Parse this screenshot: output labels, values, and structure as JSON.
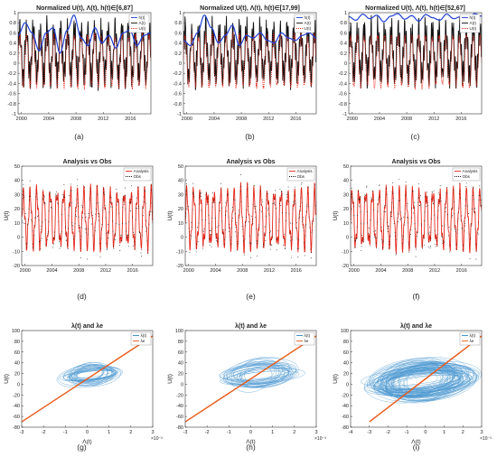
{
  "figure": {
    "colors": {
      "blue": "#1f3fd6",
      "red": "#e3281b",
      "black": "#111111",
      "scatter_blue": "#2e86c8",
      "orange": "#e8591a"
    }
  },
  "chart_data": [
    {
      "panel": "(a)",
      "type": "line",
      "title": "Normalized U(t), Λ(t), h(t)∈[6,87]",
      "xticks": [
        "2000",
        "2004",
        "2008",
        "2012",
        "2016"
      ],
      "xlim": [
        1999.5,
        2019
      ],
      "ylim": [
        -1,
        1
      ],
      "yticks": [
        "-1",
        "-0.8",
        "-0.6",
        "-0.4",
        "-0.2",
        "0",
        "0.2",
        "0.4",
        "0.6",
        "0.8",
        "1"
      ],
      "legend": {
        "position": "top-right",
        "entries": [
          "h(t)",
          "Λ(t)",
          "U(t)"
        ]
      },
      "series": [
        {
          "name": "h(t)",
          "values": [
            0.55,
            0.8,
            0.6,
            0.25,
            0.6,
            0.7,
            0.2,
            0.65,
            0.95,
            0.5,
            0.35,
            0.7,
            0.4,
            0.55,
            0.3,
            0.6,
            0.65,
            0.35,
            0.55,
            0.6
          ]
        },
        {
          "name": "Λ(t)",
          "amplitude": [
            -0.55,
            0.95
          ]
        },
        {
          "name": "U(t)",
          "amplitude": [
            -0.6,
            0.6
          ]
        }
      ]
    },
    {
      "panel": "(b)",
      "type": "line",
      "title": "Normalized U(t), Λ(t), h(t)∈[17,99]",
      "xticks": [
        "2000",
        "2004",
        "2008",
        "2012",
        "2016"
      ],
      "xlim": [
        1999.5,
        2019
      ],
      "ylim": [
        -1,
        1
      ],
      "yticks": [
        "-1",
        "-0.8",
        "-0.6",
        "-0.4",
        "-0.2",
        "0",
        "0.2",
        "0.4",
        "0.6",
        "0.8",
        "1"
      ],
      "legend": {
        "position": "top-right",
        "entries": [
          "h(t)",
          "Λ(t)",
          "U(t)"
        ]
      },
      "series": [
        {
          "name": "h(t)",
          "values": [
            0.45,
            0.35,
            0.6,
            0.95,
            0.7,
            0.4,
            0.55,
            0.75,
            0.35,
            0.55,
            0.5,
            0.6,
            0.45,
            0.4,
            0.6,
            0.5,
            0.45,
            0.55,
            0.6,
            0.5
          ]
        },
        {
          "name": "Λ(t)",
          "amplitude": [
            -0.55,
            0.95
          ]
        },
        {
          "name": "U(t)",
          "amplitude": [
            -0.65,
            0.6
          ]
        }
      ]
    },
    {
      "panel": "(c)",
      "type": "line",
      "title": "Normalized U(t), Λ(t), h(t)∈[52,67]",
      "xticks": [
        "2000",
        "2004",
        "2008",
        "2012",
        "2016"
      ],
      "xlim": [
        1999.5,
        2019
      ],
      "ylim": [
        -1,
        1
      ],
      "yticks": [
        "-1",
        "-0.8",
        "-0.6",
        "-0.4",
        "-0.2",
        "0",
        "0.2",
        "0.4",
        "0.6",
        "0.8",
        "1"
      ],
      "legend": {
        "position": "top-right",
        "entries": [
          "h(t)",
          "Λ(t)",
          "U(t)"
        ]
      },
      "series": [
        {
          "name": "h(t)",
          "values": [
            0.92,
            0.85,
            0.97,
            0.88,
            0.95,
            0.82,
            0.93,
            0.98,
            0.87,
            0.94,
            0.83,
            0.96,
            0.9,
            0.85,
            0.97,
            0.88,
            0.92,
            0.86,
            0.98,
            0.93
          ]
        },
        {
          "name": "Λ(t)",
          "amplitude": [
            -0.5,
            0.95
          ]
        },
        {
          "name": "U(t)",
          "amplitude": [
            -0.9,
            0.55
          ]
        }
      ]
    },
    {
      "panel": "(d)",
      "type": "line",
      "title": "Analysis vs Obs",
      "ylabel": "U(t)",
      "xticks": [
        "2000",
        "2004",
        "2008",
        "2012",
        "2016"
      ],
      "xlim": [
        1999.5,
        2019
      ],
      "ylim": [
        -20,
        50
      ],
      "yticks": [
        "-20",
        "-10",
        "0",
        "10",
        "20",
        "30",
        "40",
        "50"
      ],
      "legend": {
        "position": "top-right",
        "entries": [
          "Analysis",
          "Obs"
        ]
      },
      "series": [
        {
          "name": "Analysis",
          "amplitude": [
            -12,
            40
          ]
        },
        {
          "name": "Obs",
          "amplitude": [
            -14,
            44
          ]
        }
      ]
    },
    {
      "panel": "(e)",
      "type": "line",
      "title": "Analysis vs Obs",
      "ylabel": "U(t)",
      "xticks": [
        "2000",
        "2004",
        "2008",
        "2012",
        "2016"
      ],
      "xlim": [
        1999.5,
        2019
      ],
      "ylim": [
        -20,
        50
      ],
      "yticks": [
        "-20",
        "-10",
        "0",
        "10",
        "20",
        "30",
        "40",
        "50"
      ],
      "legend": {
        "position": "top-right",
        "entries": [
          "Analysis",
          "Obs"
        ]
      },
      "series": [
        {
          "name": "Analysis",
          "amplitude": [
            -12,
            40
          ]
        },
        {
          "name": "Obs",
          "amplitude": [
            -14,
            44
          ]
        }
      ]
    },
    {
      "panel": "(f)",
      "type": "line",
      "title": "Analysis vs Obs",
      "ylabel": "U(t)",
      "xticks": [
        "2000",
        "2004",
        "2008",
        "2012",
        "2016"
      ],
      "xlim": [
        1999.5,
        2019
      ],
      "ylim": [
        -20,
        50
      ],
      "yticks": [
        "-20",
        "-10",
        "0",
        "10",
        "20",
        "30",
        "40",
        "50"
      ],
      "legend": {
        "position": "top-right",
        "entries": [
          "Analysis",
          "Obs"
        ]
      },
      "series": [
        {
          "name": "Analysis",
          "amplitude": [
            -12,
            40
          ]
        },
        {
          "name": "Obs",
          "amplitude": [
            -14,
            44
          ]
        }
      ]
    },
    {
      "panel": "(g)",
      "type": "scatter",
      "title": "λ(t) and λe",
      "xlabel": "Λ(t)",
      "ylabel": "U(t)",
      "xexp": "×10⁻³",
      "xlim": [
        -3,
        3
      ],
      "xticks": [
        "-3",
        "-2",
        "-1",
        "0",
        "1",
        "2",
        "3"
      ],
      "ylim": [
        -80,
        100
      ],
      "yticks": [
        "-80",
        "-60",
        "-40",
        "-20",
        "0",
        "20",
        "40",
        "60",
        "80",
        "100"
      ],
      "legend": {
        "position": "top-right",
        "entries": [
          "λ(t)",
          "λe"
        ]
      },
      "series": [
        {
          "name": "λe",
          "x": [
            -3,
            3
          ],
          "y": [
            -70,
            90
          ]
        },
        {
          "name": "λ(t)",
          "xrange": [
            -1.2,
            1.6
          ],
          "yrange": [
            -5,
            40
          ]
        }
      ]
    },
    {
      "panel": "(h)",
      "type": "scatter",
      "title": "λ(t) and λe",
      "xlabel": "Λ(t)",
      "ylabel": "U(t)",
      "xexp": "×10⁻³",
      "xlim": [
        -3,
        3
      ],
      "xticks": [
        "-3",
        "-2",
        "-1",
        "0",
        "1",
        "2",
        "3"
      ],
      "ylim": [
        -80,
        100
      ],
      "yticks": [
        "-80",
        "-60",
        "-40",
        "-20",
        "0",
        "20",
        "40",
        "60",
        "80",
        "100"
      ],
      "legend": {
        "position": "top-right",
        "entries": [
          "λ(t)",
          "λe"
        ]
      },
      "series": [
        {
          "name": "λe",
          "x": [
            -3,
            3
          ],
          "y": [
            -70,
            90
          ]
        },
        {
          "name": "λ(t)",
          "xrange": [
            -1.5,
            2.2
          ],
          "yrange": [
            -10,
            45
          ]
        }
      ]
    },
    {
      "panel": "(i)",
      "type": "scatter",
      "title": "λ(t) and λe",
      "xlabel": "Λ(t)",
      "ylabel": "U(t)",
      "xexp": "×10⁻³",
      "xlim": [
        -4,
        3
      ],
      "xticks": [
        "-4",
        "-3",
        "-2",
        "-1",
        "0",
        "1",
        "2",
        "3"
      ],
      "ylim": [
        -80,
        100
      ],
      "yticks": [
        "-80",
        "-60",
        "-40",
        "-20",
        "0",
        "20",
        "40",
        "60",
        "80",
        "100"
      ],
      "legend": {
        "position": "top-right",
        "entries": [
          "λ(t)",
          "λe"
        ]
      },
      "series": [
        {
          "name": "λe",
          "x": [
            -3,
            3
          ],
          "y": [
            -70,
            90
          ]
        },
        {
          "name": "λ(t)",
          "xrange": [
            -3,
            2.5
          ],
          "yrange": [
            -30,
            45
          ]
        }
      ]
    }
  ]
}
